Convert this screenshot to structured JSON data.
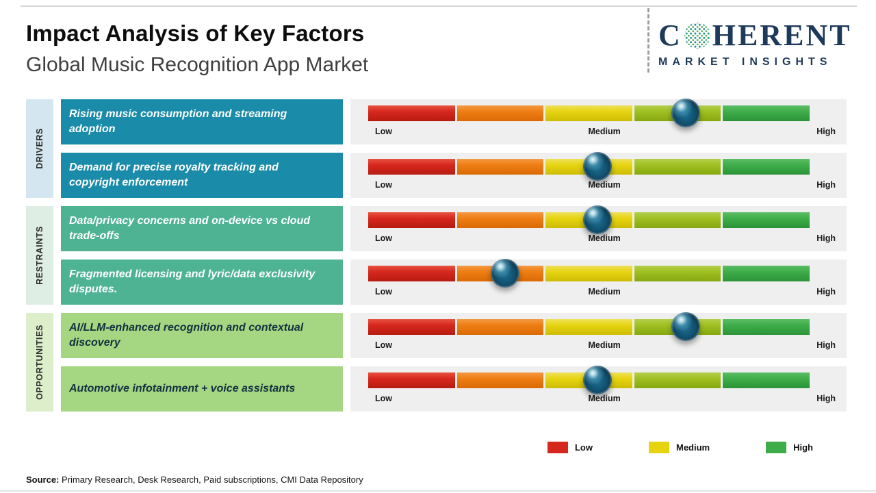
{
  "header": {
    "title": "Impact Analysis of Key Factors",
    "subtitle": "Global Music Recognition App Market",
    "logo": {
      "brand_c": "C",
      "brand_rest": "HERENT",
      "tagline": "MARKET INSIGHTS"
    }
  },
  "chart_data": {
    "type": "bar",
    "title": "Impact Analysis of Key Factors",
    "subtitle": "Global Music Recognition App Market",
    "axis_range_percent": [
      0,
      100
    ],
    "scale": {
      "low": "Low",
      "medium": "Medium",
      "high": "High"
    },
    "segment_colors": [
      "#d6271d",
      "#ee7d12",
      "#e6d411",
      "#9fc021",
      "#3ead49"
    ],
    "groups": [
      {
        "category": "DRIVERS",
        "factors": [
          {
            "label": "Rising music consumption and streaming adoption",
            "impact_position_percent": 72,
            "impact_level": "Medium-High"
          },
          {
            "label": "Demand for precise royalty tracking and copyright enforcement",
            "impact_position_percent": 52,
            "impact_level": "Medium"
          }
        ]
      },
      {
        "category": "RESTRAINTS",
        "factors": [
          {
            "label": "Data/privacy concerns and on-device vs cloud trade-offs",
            "impact_position_percent": 52,
            "impact_level": "Medium"
          },
          {
            "label": "Fragmented licensing and lyric/data exclusivity disputes.",
            "impact_position_percent": 31,
            "impact_level": "Low-Medium"
          }
        ]
      },
      {
        "category": "OPPORTUNITIES",
        "factors": [
          {
            "label": "AI/LLM-enhanced recognition and contextual discovery",
            "impact_position_percent": 72,
            "impact_level": "Medium-High"
          },
          {
            "label": "Automotive infotainment + voice assistants",
            "impact_position_percent": 52,
            "impact_level": "Medium"
          }
        ]
      }
    ],
    "legend": [
      {
        "label": "Low",
        "color": "#d6271d"
      },
      {
        "label": "Medium",
        "color": "#e6d411"
      },
      {
        "label": "High",
        "color": "#3ead49"
      }
    ]
  },
  "footer": {
    "source_label": "Source:",
    "source_text": " Primary Research, Desk Research, Paid subscriptions, CMI Data Repository"
  }
}
